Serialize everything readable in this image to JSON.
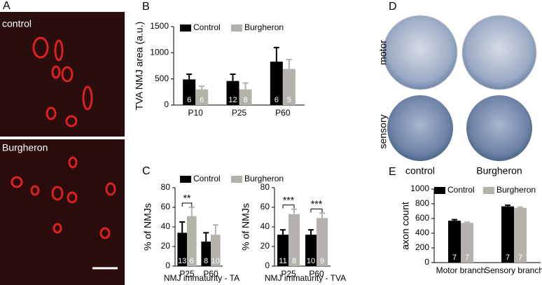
{
  "panel_labels": [
    "A",
    "B",
    "C",
    "D",
    "E"
  ],
  "panel_a": {
    "labels": [
      "control",
      "Burgheron"
    ]
  },
  "panel_d": {
    "rows": [
      "motor",
      "sensory"
    ],
    "columns": [
      "control",
      "Burgheron"
    ]
  },
  "chart_data": [
    {
      "type": "bar",
      "y_label": "TVA NMJ area (a.u.)",
      "categories": [
        "P10",
        "P25",
        "P60"
      ],
      "ylim": [
        0,
        1500
      ],
      "yticks": [
        0,
        500,
        1000,
        1500
      ],
      "series": [
        {
          "name": "Control",
          "color": "#000000",
          "values": [
            490,
            460,
            830
          ],
          "errors": [
            100,
            130,
            270
          ],
          "n": [
            6,
            12,
            6
          ]
        },
        {
          "name": "Burgheron",
          "color": "#b5b2ab",
          "values": [
            300,
            300,
            690
          ],
          "errors": [
            60,
            120,
            180
          ],
          "n": [
            6,
            8,
            5
          ]
        }
      ]
    },
    {
      "type": "bar",
      "y_label": "% of NMJs",
      "x_label": "NMJ immaturity - TA",
      "categories": [
        "P25",
        "P60"
      ],
      "ylim": [
        0,
        80
      ],
      "yticks": [
        0,
        20,
        40,
        60,
        80
      ],
      "significance": [
        "**",
        null
      ],
      "series": [
        {
          "name": "Control",
          "color": "#000000",
          "values": [
            34,
            25
          ],
          "errors": [
            11,
            9
          ],
          "n": [
            13,
            8
          ]
        },
        {
          "name": "Burgheron",
          "color": "#b5b2ab",
          "values": [
            51,
            32
          ],
          "errors": [
            9,
            10
          ],
          "n": [
            6,
            10
          ]
        }
      ]
    },
    {
      "type": "bar",
      "y_label": "% of NMJs",
      "x_label": "NMJ immaturity - TVA",
      "categories": [
        "P25",
        "P60"
      ],
      "ylim": [
        0,
        80
      ],
      "yticks": [
        0,
        20,
        40,
        60,
        80
      ],
      "significance": [
        "***",
        "***"
      ],
      "series": [
        {
          "color": "#000000",
          "values": [
            32,
            32
          ],
          "errors": [
            5,
            5
          ],
          "n": [
            11,
            10
          ]
        },
        {
          "color": "#b5b2ab",
          "values": [
            53,
            49
          ],
          "errors": [
            5,
            5
          ],
          "n": [
            8,
            9
          ]
        }
      ]
    },
    {
      "type": "bar",
      "y_label": "axon count",
      "categories": [
        "Motor branch",
        "Sensory branch"
      ],
      "ylim": [
        0,
        1000
      ],
      "yticks": [
        0,
        200,
        400,
        600,
        800,
        1000
      ],
      "series": [
        {
          "name": "Control",
          "color": "#000000",
          "values": [
            570,
            765
          ],
          "errors": [
            15,
            15
          ],
          "n": [
            7,
            7
          ]
        },
        {
          "name": "Burgheron",
          "color": "#b5b2ab",
          "values": [
            540,
            745
          ],
          "errors": [
            10,
            10
          ],
          "n": [
            7,
            7
          ]
        }
      ]
    }
  ]
}
